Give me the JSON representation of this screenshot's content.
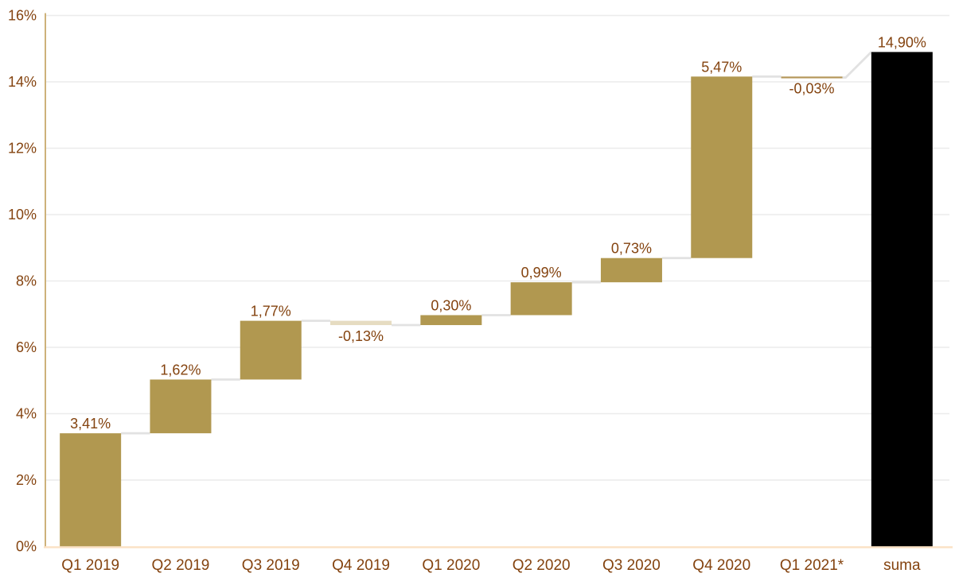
{
  "chart_data": {
    "type": "bar",
    "variant": "waterfall",
    "title": "",
    "xlabel": "",
    "ylabel": "",
    "legend": null,
    "grid": true,
    "categories": [
      "Q1 2019",
      "Q2 2019",
      "Q3 2019",
      "Q4 2019",
      "Q1 2020",
      "Q2 2020",
      "Q3 2020",
      "Q4 2020",
      "Q1 2021*",
      "suma"
    ],
    "deltas": [
      3.41,
      1.62,
      1.77,
      -0.13,
      0.3,
      0.99,
      0.73,
      5.47,
      -0.03
    ],
    "cumulative": [
      3.41,
      5.03,
      6.8,
      6.67,
      6.97,
      7.96,
      8.69,
      14.16,
      14.13
    ],
    "total": 14.9,
    "total_category": "suma",
    "labels": [
      "3,41%",
      "1,62%",
      "1,77%",
      "-0,13%",
      "0,30%",
      "0,99%",
      "0,73%",
      "5,47%",
      "-0,03%",
      "14,90%"
    ],
    "ylim": [
      0,
      16
    ],
    "ytick_step": 2,
    "yticks": [
      "0%",
      "2%",
      "4%",
      "6%",
      "8%",
      "10%",
      "12%",
      "14%",
      "16%"
    ],
    "decimal_separator": ",",
    "colors": {
      "positive": "#b19850",
      "negative": "#e6dcc1",
      "total": "#000000",
      "thin_bar": "#b5975a",
      "value_label": "#84430f",
      "axis_label": "#84430f",
      "grid": "#ececec",
      "connector": "#e2e2e2",
      "y_axis_line": "#cdb27a",
      "x_axis_line": "#fbe2c6",
      "background": "#ffffff"
    }
  }
}
